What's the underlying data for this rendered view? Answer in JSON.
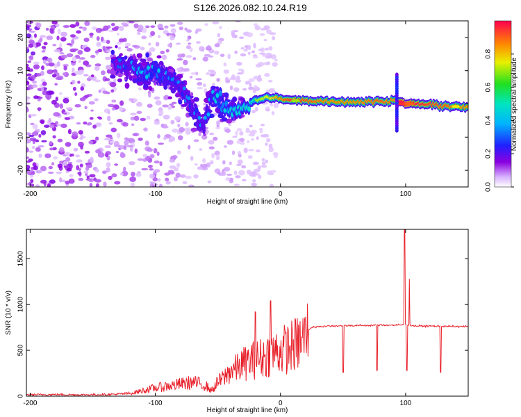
{
  "figure_title": "S126.2026.082.10.24.R19",
  "colors": {
    "snr_line": "#e8202a",
    "axis": "#000000",
    "background": "#ffffff"
  },
  "chart_data": [
    {
      "type": "heatmap",
      "name": "spectrogram",
      "xlabel": "Height of straight line (km)",
      "ylabel": "Frequency (Hz)",
      "xlim": [
        -203,
        150
      ],
      "ylim": [
        -25,
        25
      ],
      "xticks": [
        -200,
        -100,
        0,
        100
      ],
      "xtick_labels": [
        "-200",
        "-100",
        "0",
        "100"
      ],
      "yticks": [
        -20,
        -10,
        0,
        10,
        20
      ],
      "ytick_labels": [
        "-20",
        "-10",
        "0",
        "10",
        "20"
      ],
      "ridge": {
        "description": "main frequency ridge (km, Hz, normalized amplitude)",
        "points": [
          [
            -130,
            12,
            0.15
          ],
          [
            -120,
            11,
            0.2
          ],
          [
            -110,
            9.5,
            0.25
          ],
          [
            -100,
            10,
            0.28
          ],
          [
            -90,
            8,
            0.2
          ],
          [
            -80,
            5,
            0.18
          ],
          [
            -70,
            -2,
            0.2
          ],
          [
            -62,
            -7,
            0.2
          ],
          [
            -55,
            3,
            0.25
          ],
          [
            -50,
            1,
            0.3
          ],
          [
            -45,
            -1,
            0.28
          ],
          [
            -40,
            -2,
            0.3
          ],
          [
            -30,
            -1,
            0.3
          ],
          [
            -20,
            1,
            0.35
          ],
          [
            -10,
            2,
            0.4
          ],
          [
            0,
            1.5,
            0.5
          ],
          [
            10,
            1,
            0.6
          ],
          [
            20,
            1,
            0.55
          ],
          [
            40,
            0.8,
            0.5
          ],
          [
            60,
            0.6,
            0.5
          ],
          [
            80,
            0.8,
            0.55
          ],
          [
            92,
            1,
            0.5
          ],
          [
            100,
            0,
            0.9
          ],
          [
            110,
            0,
            0.6
          ],
          [
            130,
            -0.5,
            0.55
          ],
          [
            145,
            -1,
            0.5
          ]
        ]
      },
      "spike": {
        "x": 93,
        "f_range": [
          -8,
          9
        ]
      },
      "colorbar": {
        "label": "Normalized spectral amplitude",
        "range": [
          0,
          1
        ],
        "ticks": [
          0.0,
          0.2,
          0.4,
          0.6,
          0.8
        ],
        "tick_labels": [
          "0.0",
          "0.2",
          "0.4",
          "0.6",
          "0.8"
        ]
      }
    },
    {
      "type": "line",
      "name": "snr",
      "xlabel": "Height of straight line (km)",
      "ylabel": "SNR (10 * v/v)",
      "xlim": [
        -203,
        150
      ],
      "ylim": [
        0,
        1820
      ],
      "xticks": [
        -200,
        -100,
        0,
        100
      ],
      "xtick_labels": [
        "-200",
        "-100",
        "0",
        "100"
      ],
      "yticks": [
        0,
        500,
        1000,
        1500
      ],
      "ytick_labels": [
        "0",
        "500",
        "1000",
        "1500"
      ],
      "series": [
        {
          "name": "SNR",
          "x": [
            -203,
            -180,
            -160,
            -140,
            -130,
            -120,
            -110,
            -100,
            -90,
            -80,
            -70,
            -60,
            -55,
            -50,
            -45,
            -40,
            -35,
            -30,
            -25,
            -20,
            -15,
            -10,
            -5,
            0,
            5,
            10,
            15,
            20,
            22,
            25,
            30,
            40,
            50,
            60,
            70,
            80,
            90,
            95,
            98,
            100,
            102,
            105,
            110,
            120,
            130,
            140,
            150
          ],
          "y": [
            15,
            18,
            15,
            18,
            22,
            30,
            60,
            90,
            110,
            130,
            150,
            120,
            60,
            150,
            200,
            280,
            300,
            350,
            380,
            400,
            420,
            450,
            480,
            500,
            520,
            550,
            580,
            650,
            720,
            750,
            760,
            765,
            770,
            770,
            772,
            775,
            775,
            775,
            780,
            790,
            780,
            770,
            765,
            765,
            762,
            760,
            760
          ]
        }
      ],
      "spikes": [
        {
          "x": -20,
          "y": 920
        },
        {
          "x": -8,
          "y": 1040
        },
        {
          "x": 50,
          "y": 260
        },
        {
          "x": 77,
          "y": 280
        },
        {
          "x": 99,
          "y": 1820
        },
        {
          "x": 101,
          "y": 280
        },
        {
          "x": 103,
          "y": 1280
        },
        {
          "x": 128,
          "y": 260
        }
      ]
    }
  ]
}
